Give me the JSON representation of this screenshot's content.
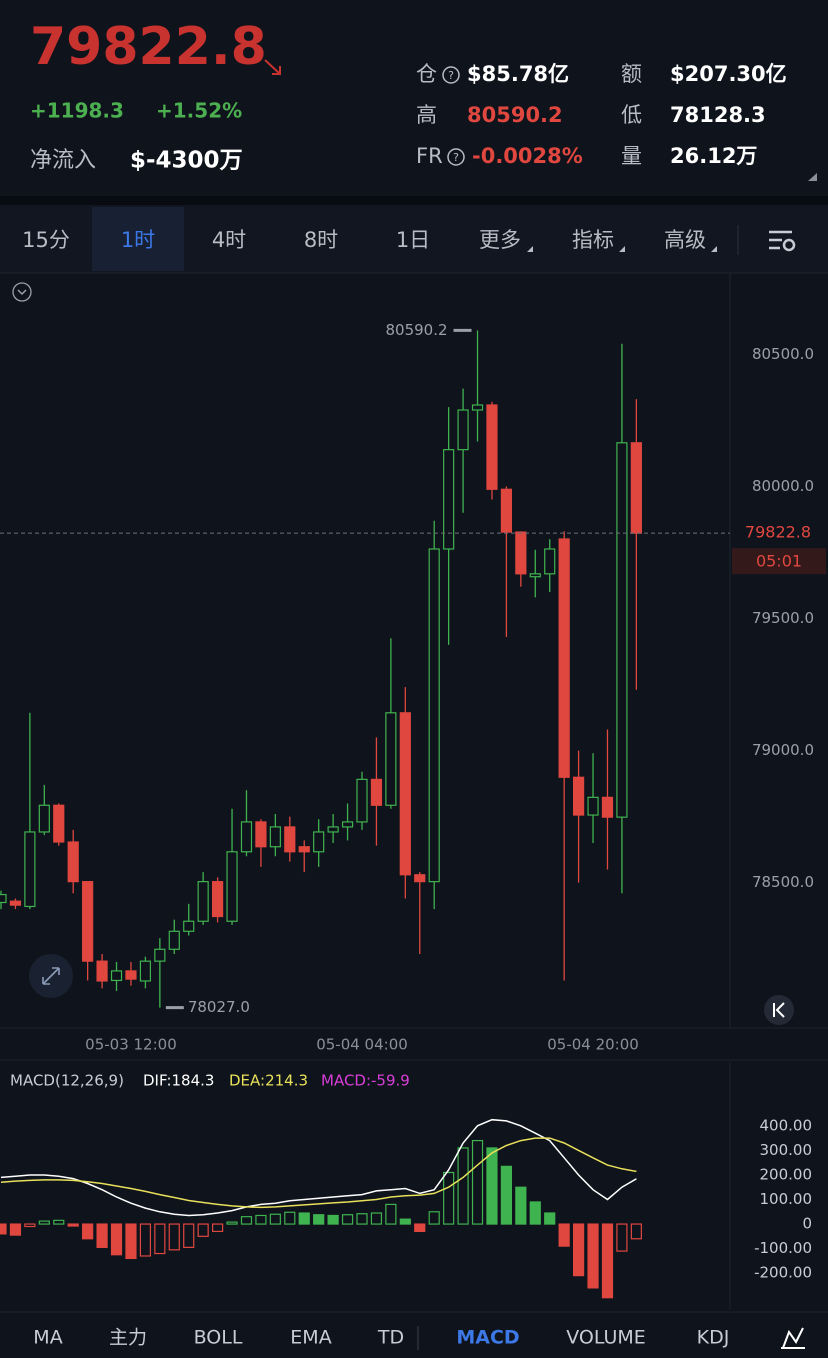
{
  "header": {
    "price": "79822.8",
    "change": "+1198.3",
    "change_pct": "+1.52%",
    "net_inflow": {
      "label": "净流入",
      "value": "$-4300万"
    },
    "stats": [
      {
        "label": "仓",
        "value": "$85.78亿",
        "color": "#ffffff"
      },
      {
        "label": "额",
        "value": "$207.30亿",
        "color": "#ffffff"
      },
      {
        "label": "高",
        "value": "80590.2",
        "color": "#e0473f"
      },
      {
        "label": "低",
        "value": "78128.3",
        "color": "#ffffff"
      },
      {
        "label": "FR",
        "value": "-0.0028%",
        "color": "#e0473f"
      },
      {
        "label": "量",
        "value": "26.12万",
        "color": "#ffffff"
      }
    ]
  },
  "timeframe_tabs": {
    "items": [
      "15分",
      "1时",
      "4时",
      "8时",
      "1日",
      "更多",
      "指标",
      "高级"
    ],
    "active": 1
  },
  "indicator_tabs": {
    "items": [
      "MA",
      "主力",
      "BOLL",
      "EMA",
      "TD",
      "MACD",
      "VOLUME",
      "KDJ"
    ],
    "active": 5
  },
  "chart_data": [
    {
      "type": "candlestick",
      "categories": [
        null,
        null,
        null,
        null,
        null,
        null,
        null,
        null,
        null,
        "05-03 12:00",
        null,
        null,
        null,
        null,
        null,
        null,
        null,
        null,
        null,
        null,
        null,
        null,
        null,
        null,
        null,
        "05-04 04:00",
        null,
        null,
        null,
        null,
        null,
        null,
        null,
        null,
        null,
        null,
        null,
        null,
        null,
        null,
        null,
        "05-04 20:00",
        null,
        null,
        null
      ],
      "open": [
        78425,
        78430,
        78410,
        78692,
        78793,
        78654,
        78504,
        78203,
        78130,
        78166,
        78128,
        78203,
        78248,
        78316,
        78354,
        78504,
        78354,
        78617,
        78730,
        78636,
        78711,
        78636,
        78617,
        78692,
        78711,
        78730,
        78891,
        78793,
        79143,
        78530,
        78504,
        79763,
        80139,
        80289,
        80308,
        79989,
        79827,
        79658,
        79669,
        79801,
        78899,
        78756,
        78823,
        78748,
        80165
      ],
      "high": [
        78470,
        78440,
        79143,
        78870,
        78800,
        78700,
        78504,
        78230,
        78200,
        78200,
        78220,
        78290,
        78360,
        78420,
        78540,
        78520,
        78780,
        78850,
        78740,
        78760,
        78750,
        78660,
        78740,
        78760,
        78800,
        78920,
        79050,
        79425,
        79240,
        78540,
        79870,
        80300,
        80370,
        80590.2,
        80320,
        80000,
        79830,
        79760,
        79800,
        79830,
        79000,
        78990,
        79080,
        80540,
        80330
      ],
      "low": [
        78400,
        78400,
        78400,
        78680,
        78640,
        78460,
        78130,
        78100,
        78090,
        78110,
        78100,
        78027,
        78230,
        78300,
        78340,
        78350,
        78340,
        78600,
        78560,
        78600,
        78580,
        78540,
        78560,
        78650,
        78660,
        78700,
        78640,
        78780,
        78440,
        78230,
        78400,
        79400,
        79900,
        80170,
        79950,
        79430,
        79620,
        79580,
        79600,
        78130,
        78500,
        78650,
        78550,
        78460,
        79230
      ],
      "close": [
        78455,
        78415,
        78692,
        78793,
        78654,
        78504,
        78203,
        78128,
        78166,
        78135,
        78203,
        78248,
        78316,
        78354,
        78504,
        78372,
        78617,
        78730,
        78636,
        78711,
        78617,
        78617,
        78692,
        78711,
        78730,
        78891,
        78793,
        79143,
        78530,
        78504,
        79763,
        80139,
        80289,
        80308,
        79989,
        79827,
        79669,
        79669,
        79763,
        78899,
        78756,
        78823,
        78748,
        80165,
        79822.8
      ],
      "up_color": "#3fb34f",
      "down_color": "#e0473f",
      "ylim": [
        77950,
        80800
      ],
      "yticks": [
        {
          "value": 78500,
          "label": "78500.0"
        },
        {
          "value": 79000,
          "label": "79000.0"
        },
        {
          "value": 79500,
          "label": "79500.0"
        },
        {
          "value": 80000,
          "label": "80000.0"
        },
        {
          "value": 80500,
          "label": "80500.0"
        }
      ],
      "grid": false,
      "last_price": 79822.8,
      "countdown": "05:01",
      "annotations": {
        "high": 80590.2,
        "low": {
          "value": 78027,
          "label": "78027.0"
        }
      }
    },
    {
      "type": "macd",
      "title": "MACD(12,26,9)",
      "series": [
        {
          "name": "DIF:184.3",
          "color": "#ffffff",
          "values": [
            190,
            195,
            200,
            200,
            195,
            185,
            165,
            140,
            110,
            85,
            65,
            50,
            40,
            35,
            38,
            45,
            55,
            70,
            80,
            85,
            95,
            100,
            105,
            110,
            115,
            120,
            135,
            140,
            145,
            125,
            140,
            220,
            330,
            400,
            425,
            420,
            400,
            370,
            340,
            270,
            200,
            140,
            100,
            150,
            184.3
          ]
        },
        {
          "name": "DEA:214.3",
          "color": "#e8e05a",
          "values": [
            170,
            175,
            178,
            180,
            180,
            178,
            172,
            165,
            155,
            145,
            133,
            120,
            108,
            96,
            88,
            80,
            74,
            70,
            68,
            70,
            74,
            78,
            82,
            86,
            90,
            95,
            100,
            110,
            115,
            118,
            125,
            150,
            190,
            240,
            290,
            320,
            340,
            350,
            350,
            330,
            300,
            270,
            240,
            225,
            214.3
          ]
        },
        {
          "name": "MACD:-59.9",
          "color": "#d93ed9",
          "up_color": "#3fb34f",
          "down_color": "#e0473f",
          "values": [
            -40,
            -45,
            -10,
            12,
            15,
            -8,
            -60,
            -95,
            -125,
            -140,
            -130,
            -120,
            -105,
            -95,
            -50,
            -30,
            8,
            30,
            35,
            40,
            48,
            45,
            38,
            35,
            38,
            42,
            45,
            80,
            20,
            -30,
            50,
            210,
            310,
            340,
            310,
            235,
            150,
            90,
            45,
            -90,
            -210,
            -260,
            -300,
            -110,
            -59.9
          ]
        }
      ],
      "ylim": [
        -350,
        660
      ],
      "yticks": [
        {
          "value": 400,
          "label": "400.00"
        },
        {
          "value": 300,
          "label": "300.00"
        },
        {
          "value": 200,
          "label": "200.00"
        },
        {
          "value": 100,
          "label": "100.00"
        },
        0,
        {
          "value": -100,
          "label": "-100.00"
        },
        {
          "value": -200,
          "label": "-200.00"
        }
      ]
    }
  ]
}
